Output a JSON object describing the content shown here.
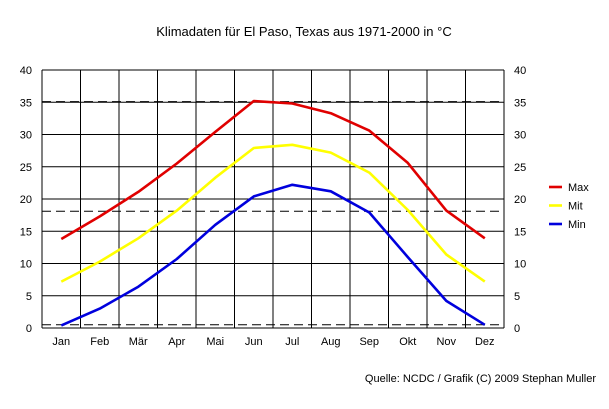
{
  "chart_data": {
    "type": "line",
    "title": "Klimadaten für El Paso, Texas aus 1971-2000 in °C",
    "categories": [
      "Jan",
      "Feb",
      "Mär",
      "Apr",
      "Mai",
      "Jun",
      "Jul",
      "Aug",
      "Sep",
      "Okt",
      "Nov",
      "Dez"
    ],
    "ylim": [
      0,
      40
    ],
    "yticks": [
      0,
      5,
      10,
      15,
      20,
      25,
      30,
      35,
      40
    ],
    "grid": true,
    "legend_position": "right",
    "reference_lines": [
      35.1,
      18.1,
      0.5
    ],
    "series": [
      {
        "name": "Max",
        "color": "#e00000",
        "values": [
          13.8,
          17.3,
          21.1,
          25.5,
          30.4,
          35.2,
          34.8,
          33.3,
          30.6,
          25.6,
          18.2,
          13.9
        ]
      },
      {
        "name": "Mit",
        "color": "#ffff00",
        "values": [
          7.2,
          10.3,
          13.9,
          18.2,
          23.3,
          27.9,
          28.4,
          27.2,
          24.1,
          18.3,
          11.4,
          7.2
        ]
      },
      {
        "name": "Min",
        "color": "#0000dd",
        "values": [
          0.4,
          3.0,
          6.4,
          10.7,
          16.0,
          20.4,
          22.2,
          21.2,
          17.9,
          11.0,
          4.2,
          0.5
        ]
      }
    ],
    "source": "Quelle: NCDC / Grafik (C) 2009 Stephan Muller"
  }
}
